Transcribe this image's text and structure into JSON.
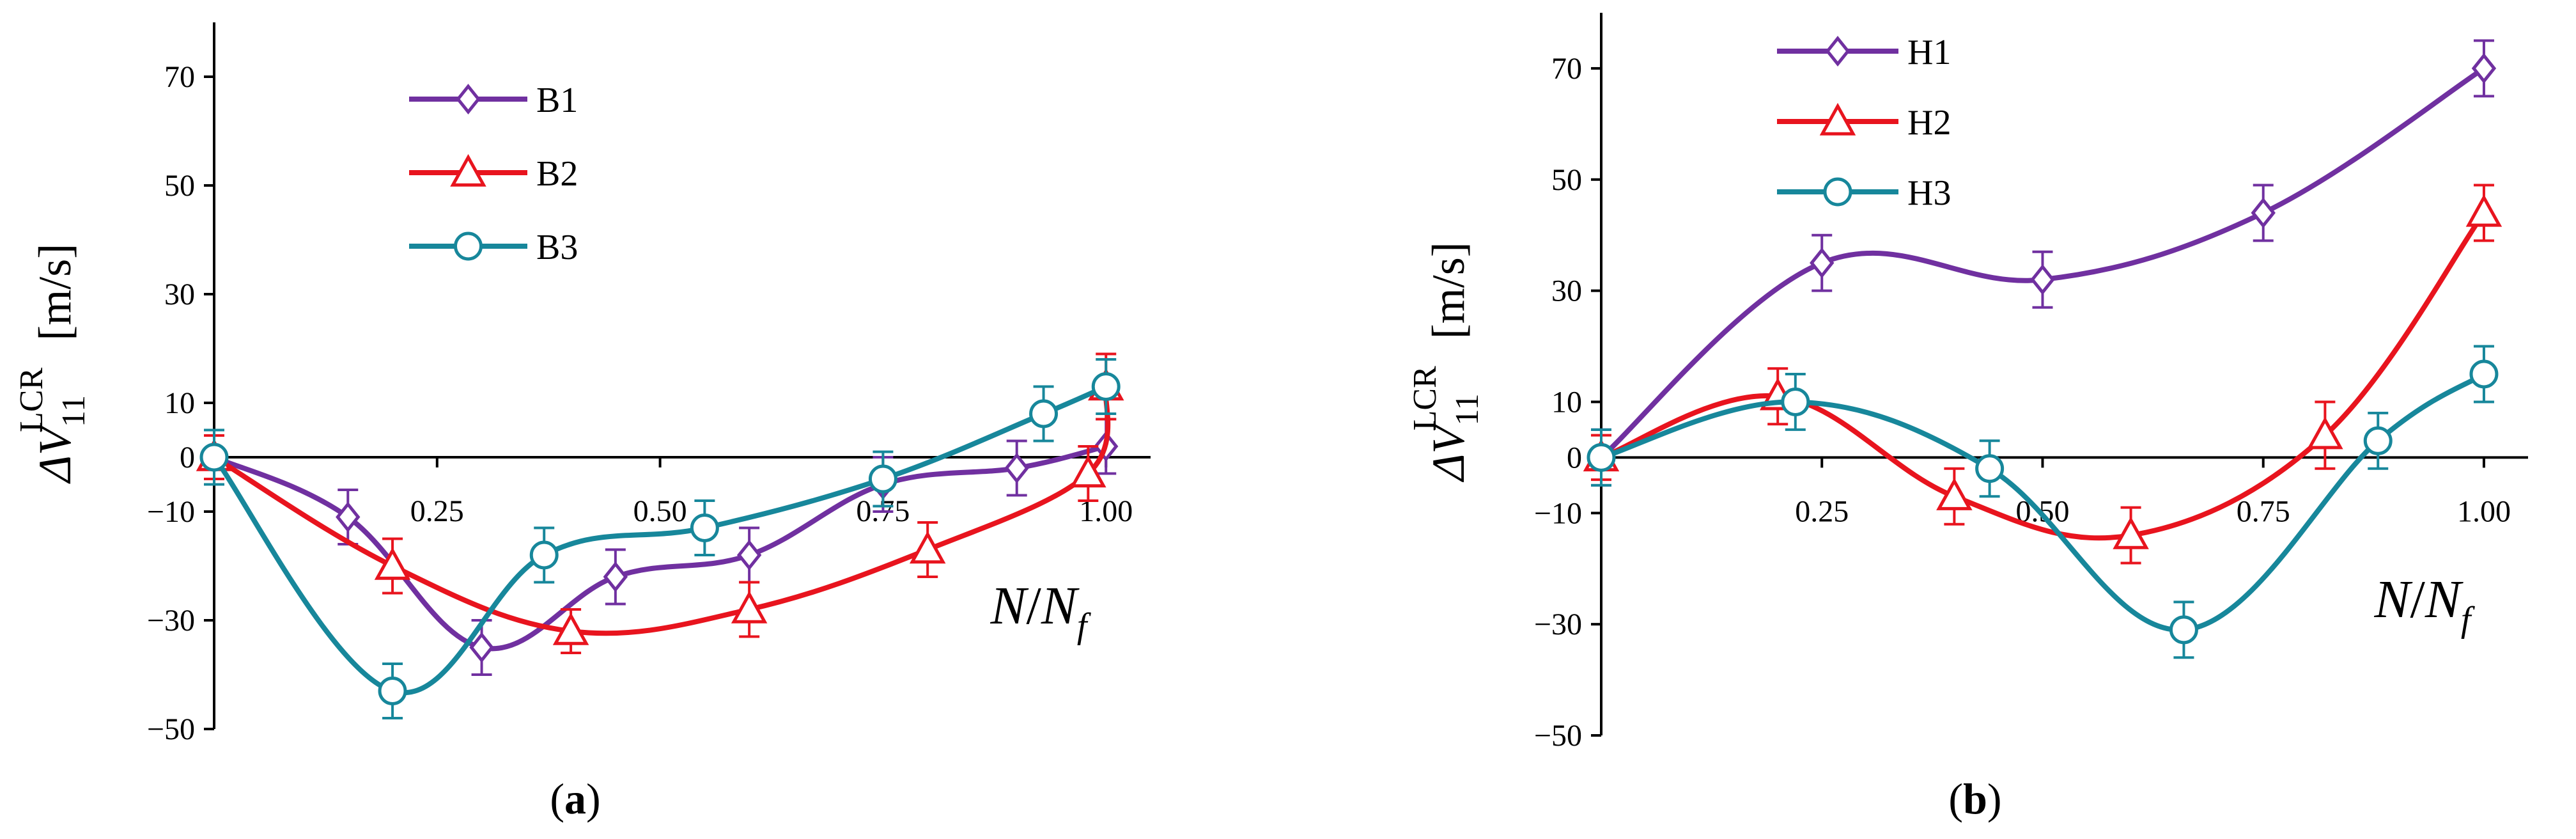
{
  "chart_data": [
    {
      "type": "line",
      "panel_label": "(a)",
      "panel_letter": "a",
      "ylabel": "ΔV11LCR [m/s]",
      "ylabel_parts": {
        "delta_v": "ΔV",
        "subscript": "11",
        "superscript": "LCR",
        "unit": "[m/s]"
      },
      "xlabel": "N/Nf",
      "xlabel_parts": {
        "n": "N",
        "slash": "/",
        "nf": "N",
        "sub_f": "f"
      },
      "xlim": [
        0,
        1.05
      ],
      "ylim": [
        -50,
        80
      ],
      "x_ticks": [
        0.25,
        0.5,
        0.75,
        1.0
      ],
      "x_tick_labels": [
        "0.25",
        "0.50",
        "0.75",
        "1.00"
      ],
      "y_ticks": [
        -50,
        -30,
        -10,
        0,
        10,
        30,
        50,
        70
      ],
      "y_tick_labels": [
        "−50",
        "−30",
        "−10",
        "0",
        "10",
        "30",
        "50",
        "70"
      ],
      "legend_position": "top-left",
      "grid": false,
      "series": [
        {
          "name": "B1",
          "marker": "diamond",
          "color": "#7030A0",
          "x": [
            0,
            0.15,
            0.3,
            0.45,
            0.6,
            0.75,
            0.9,
            1.0
          ],
          "y": [
            0,
            -11,
            -35,
            -22,
            -18,
            -5,
            -2,
            2
          ],
          "err": [
            5,
            5,
            5,
            5,
            5,
            5,
            5,
            5
          ]
        },
        {
          "name": "B2",
          "marker": "triangle",
          "color": "#E8141E",
          "x": [
            0,
            0.2,
            0.4,
            0.6,
            0.8,
            0.98,
            1.0
          ],
          "y": [
            0,
            -20,
            -32,
            -28,
            -17,
            -3,
            13
          ],
          "err": [
            4,
            5,
            4,
            5,
            5,
            5,
            6
          ]
        },
        {
          "name": "B3",
          "marker": "circle",
          "color": "#17879B",
          "x": [
            0,
            0.2,
            0.37,
            0.55,
            0.75,
            0.93,
            1.0
          ],
          "y": [
            0,
            -43,
            -18,
            -13,
            -4,
            8,
            13
          ],
          "err": [
            5,
            5,
            5,
            5,
            5,
            5,
            5
          ]
        }
      ]
    },
    {
      "type": "line",
      "panel_label": "(b)",
      "panel_letter": "b",
      "ylabel": "ΔV11LCR [m/s]",
      "ylabel_parts": {
        "delta_v": "ΔV",
        "subscript": "11",
        "superscript": "LCR",
        "unit": "[m/s]"
      },
      "xlabel": "N/Nf",
      "xlabel_parts": {
        "n": "N",
        "slash": "/",
        "nf": "N",
        "sub_f": "f"
      },
      "xlim": [
        0,
        1.05
      ],
      "ylim": [
        -50,
        80
      ],
      "x_ticks": [
        0.25,
        0.5,
        0.75,
        1.0
      ],
      "x_tick_labels": [
        "0.25",
        "0.50",
        "0.75",
        "1.00"
      ],
      "y_ticks": [
        -50,
        -30,
        -10,
        0,
        10,
        30,
        50,
        70
      ],
      "y_tick_labels": [
        "−50",
        "−30",
        "−10",
        "0",
        "10",
        "30",
        "50",
        "70"
      ],
      "legend_position": "top-left",
      "grid": false,
      "series": [
        {
          "name": "H1",
          "marker": "diamond",
          "color": "#7030A0",
          "x": [
            0,
            0.25,
            0.5,
            0.75,
            1.0
          ],
          "y": [
            0,
            35,
            32,
            44,
            70
          ],
          "err": [
            5,
            5,
            5,
            5,
            5
          ]
        },
        {
          "name": "H2",
          "marker": "triangle",
          "color": "#E8141E",
          "x": [
            0,
            0.2,
            0.4,
            0.6,
            0.82,
            1.0
          ],
          "y": [
            0,
            11,
            -7,
            -14,
            4,
            44
          ],
          "err": [
            4,
            5,
            5,
            5,
            6,
            5
          ]
        },
        {
          "name": "H3",
          "marker": "circle",
          "color": "#17879B",
          "x": [
            0,
            0.22,
            0.44,
            0.66,
            0.88,
            1.0
          ],
          "y": [
            0,
            10,
            -2,
            -31,
            3,
            15
          ],
          "err": [
            5,
            5,
            5,
            5,
            5,
            5
          ]
        }
      ]
    }
  ]
}
